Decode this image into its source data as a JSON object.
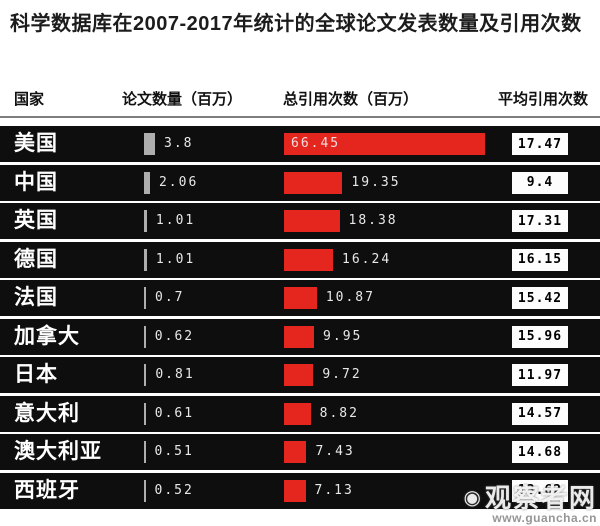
{
  "title": "科学数据库在2007-2017年统计的全球论文发表数量及引用次数",
  "headers": {
    "country": "国家",
    "papers": "论文数量（百万）",
    "citations": "总引用次数（百万）",
    "avg": "平均引用次数"
  },
  "colors": {
    "row_bg": "#0e0e0e",
    "bar_gray": "#aeaeae",
    "bar_red": "#e5261f",
    "avg_box_bg": "#fdfdfd",
    "page_bg": "#ffffff"
  },
  "watermark": {
    "logo_text": "观察者网",
    "eye_icon": "◉",
    "url": "www.guancha.cn"
  },
  "rows": [
    {
      "country": "美国",
      "papers": 3.8,
      "papers_label": "3.8",
      "citations": 66.45,
      "citations_label": "66.45",
      "avg_label": "17.47"
    },
    {
      "country": "中国",
      "papers": 2.06,
      "papers_label": "2.06",
      "citations": 19.35,
      "citations_label": "19.35",
      "avg_label": "9.4"
    },
    {
      "country": "英国",
      "papers": 1.01,
      "papers_label": "1.01",
      "citations": 18.38,
      "citations_label": "18.38",
      "avg_label": "17.31"
    },
    {
      "country": "德国",
      "papers": 1.01,
      "papers_label": "1.01",
      "citations": 16.24,
      "citations_label": "16.24",
      "avg_label": "16.15"
    },
    {
      "country": "法国",
      "papers": 0.7,
      "papers_label": "0.7",
      "citations": 10.87,
      "citations_label": "10.87",
      "avg_label": "15.42"
    },
    {
      "country": "加拿大",
      "papers": 0.62,
      "papers_label": "0.62",
      "citations": 9.95,
      "citations_label": "9.95",
      "avg_label": "15.96"
    },
    {
      "country": "日本",
      "papers": 0.81,
      "papers_label": "0.81",
      "citations": 9.72,
      "citations_label": "9.72",
      "avg_label": "11.97"
    },
    {
      "country": "意大利",
      "papers": 0.61,
      "papers_label": "0.61",
      "citations": 8.82,
      "citations_label": "8.82",
      "avg_label": "14.57"
    },
    {
      "country": "澳大利亚",
      "papers": 0.51,
      "papers_label": "0.51",
      "citations": 7.43,
      "citations_label": "7.43",
      "avg_label": "14.68"
    },
    {
      "country": "西班牙",
      "papers": 0.52,
      "papers_label": "0.52",
      "citations": 7.13,
      "citations_label": "7.13",
      "avg_label": "13.62"
    }
  ],
  "chart_data": {
    "type": "bar",
    "title": "科学数据库在2007-2017年统计的全球论文发表数量及引用次数",
    "categories": [
      "美国",
      "中国",
      "英国",
      "德国",
      "法国",
      "加拿大",
      "日本",
      "意大利",
      "澳大利亚",
      "西班牙"
    ],
    "series": [
      {
        "name": "论文数量（百万）",
        "values": [
          3.8,
          2.06,
          1.01,
          1.01,
          0.7,
          0.62,
          0.81,
          0.61,
          0.51,
          0.52
        ]
      },
      {
        "name": "总引用次数（百万）",
        "values": [
          66.45,
          19.35,
          18.38,
          16.24,
          10.87,
          9.95,
          9.72,
          8.82,
          7.43,
          7.13
        ]
      },
      {
        "name": "平均引用次数",
        "values": [
          17.47,
          9.4,
          17.31,
          16.15,
          15.42,
          15.96,
          11.97,
          14.57,
          14.68,
          13.62
        ]
      }
    ],
    "orientation": "horizontal",
    "grid": false,
    "legend_position": "none",
    "value_labels": true
  }
}
